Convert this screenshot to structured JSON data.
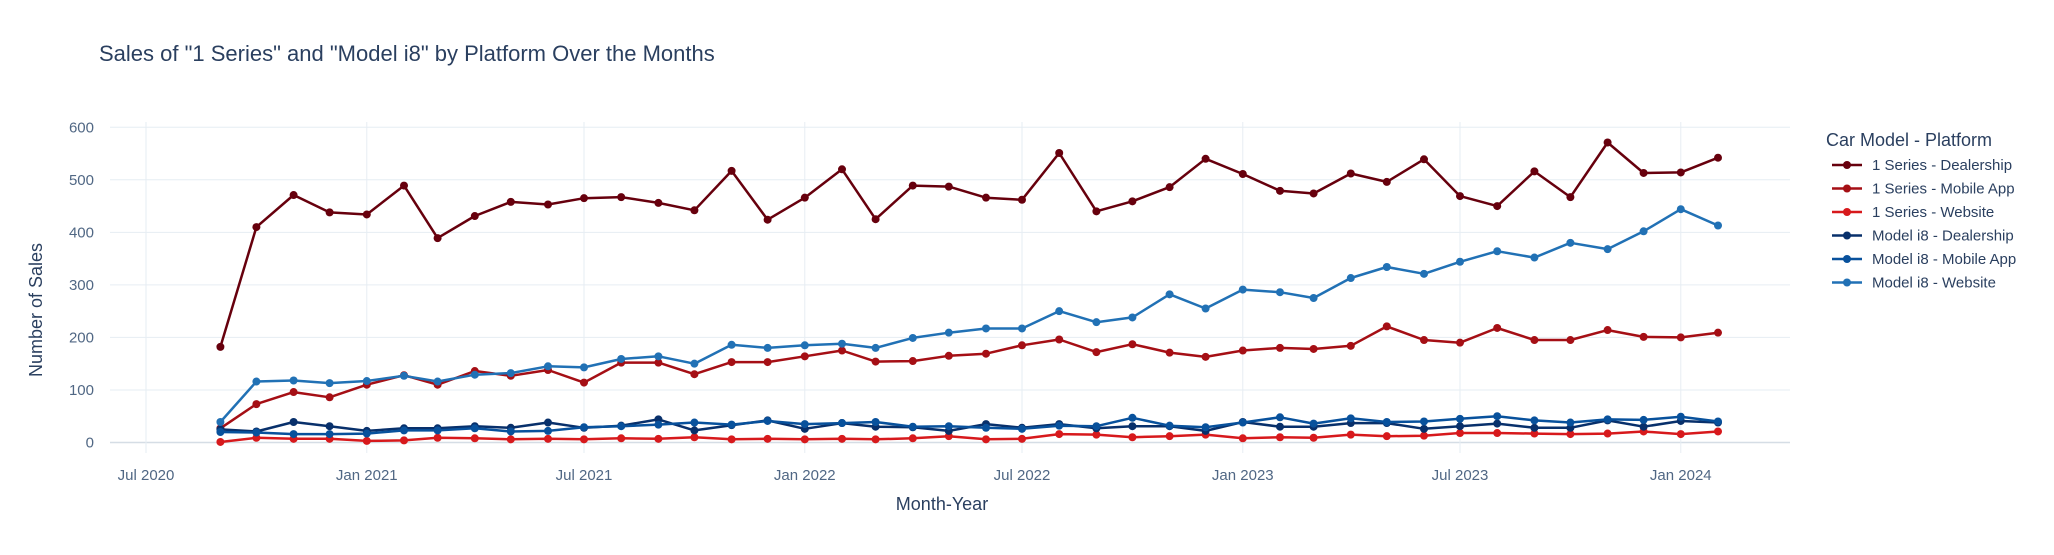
{
  "chart_data": {
    "type": "line",
    "title": "Sales of \"1 Series\" and \"Model i8\" by Platform Over the Months",
    "xlabel": "Month-Year",
    "ylabel": "Number of Sales",
    "x_start": "2020-09",
    "x_end": "2024-01",
    "xlim": [
      "2020-06-01",
      "2024-04-01"
    ],
    "ylim": [
      -20,
      610
    ],
    "x_ticks": [
      {
        "date": "2020-07-01",
        "label": "Jul 2020"
      },
      {
        "date": "2021-01-01",
        "label": "Jan 2021"
      },
      {
        "date": "2021-07-01",
        "label": "Jul 2021"
      },
      {
        "date": "2022-01-01",
        "label": "Jan 2022"
      },
      {
        "date": "2022-07-01",
        "label": "Jul 2022"
      },
      {
        "date": "2023-01-01",
        "label": "Jan 2023"
      },
      {
        "date": "2023-07-01",
        "label": "Jul 2023"
      },
      {
        "date": "2024-01-01",
        "label": "Jan 2024"
      }
    ],
    "y_ticks": [
      0,
      100,
      200,
      300,
      400,
      500,
      600
    ],
    "legend_title": "Car Model - Platform",
    "legend_position": "right",
    "grid": true,
    "series": [
      {
        "name": "1 Series - Dealership",
        "color": "#67000d",
        "values": [
          182,
          410,
          471,
          438,
          434,
          489,
          389,
          431,
          458,
          453,
          465,
          467,
          456,
          442,
          517,
          424,
          466,
          520,
          425,
          489,
          487,
          466,
          462,
          551,
          440,
          459,
          486,
          540,
          511,
          479,
          474,
          512,
          496,
          539,
          469,
          450,
          516,
          467,
          571,
          513,
          514,
          542
        ]
      },
      {
        "name": "1 Series - Mobile App",
        "color": "#a50f15",
        "values": [
          27,
          73,
          96,
          86,
          110,
          128,
          110,
          136,
          127,
          138,
          114,
          152,
          152,
          130,
          153,
          153,
          164,
          175,
          154,
          155,
          165,
          169,
          185,
          196,
          172,
          187,
          171,
          163,
          175,
          180,
          178,
          184,
          221,
          195,
          190,
          218,
          195,
          195,
          214,
          201,
          200,
          209
        ]
      },
      {
        "name": "1 Series - Website",
        "color": "#d7191c",
        "values": [
          1,
          9,
          7,
          7,
          3,
          4,
          9,
          8,
          6,
          7,
          6,
          8,
          7,
          10,
          6,
          7,
          6,
          7,
          6,
          8,
          12,
          6,
          7,
          16,
          15,
          10,
          12,
          15,
          8,
          10,
          9,
          15,
          12,
          13,
          18,
          18,
          17,
          16,
          17,
          21,
          16,
          21
        ]
      },
      {
        "name": "Model i8 - Dealership",
        "color": "#08306b",
        "values": [
          25,
          21,
          39,
          31,
          22,
          27,
          27,
          31,
          28,
          38,
          28,
          32,
          44,
          23,
          33,
          42,
          26,
          37,
          30,
          29,
          22,
          35,
          28,
          35,
          27,
          31,
          31,
          22,
          39,
          30,
          30,
          37,
          37,
          26,
          31,
          36,
          28,
          28,
          42,
          30,
          41,
          38
        ]
      },
      {
        "name": "Model i8 - Mobile App",
        "color": "#08519c",
        "values": [
          20,
          19,
          16,
          16,
          17,
          23,
          23,
          27,
          21,
          22,
          29,
          31,
          34,
          38,
          34,
          41,
          35,
          37,
          39,
          30,
          31,
          28,
          26,
          32,
          31,
          47,
          32,
          29,
          38,
          48,
          36,
          46,
          39,
          40,
          45,
          50,
          42,
          38,
          44,
          43,
          49,
          40
        ]
      },
      {
        "name": "Model i8 - Website",
        "color": "#2171b5",
        "values": [
          39,
          116,
          118,
          113,
          117,
          127,
          116,
          129,
          132,
          145,
          143,
          159,
          164,
          150,
          186,
          180,
          185,
          188,
          180,
          199,
          209,
          217,
          217,
          250,
          229,
          238,
          282,
          255,
          291,
          286,
          275,
          313,
          334,
          321,
          344,
          364,
          352,
          380,
          368,
          402,
          444,
          413
        ]
      }
    ]
  }
}
